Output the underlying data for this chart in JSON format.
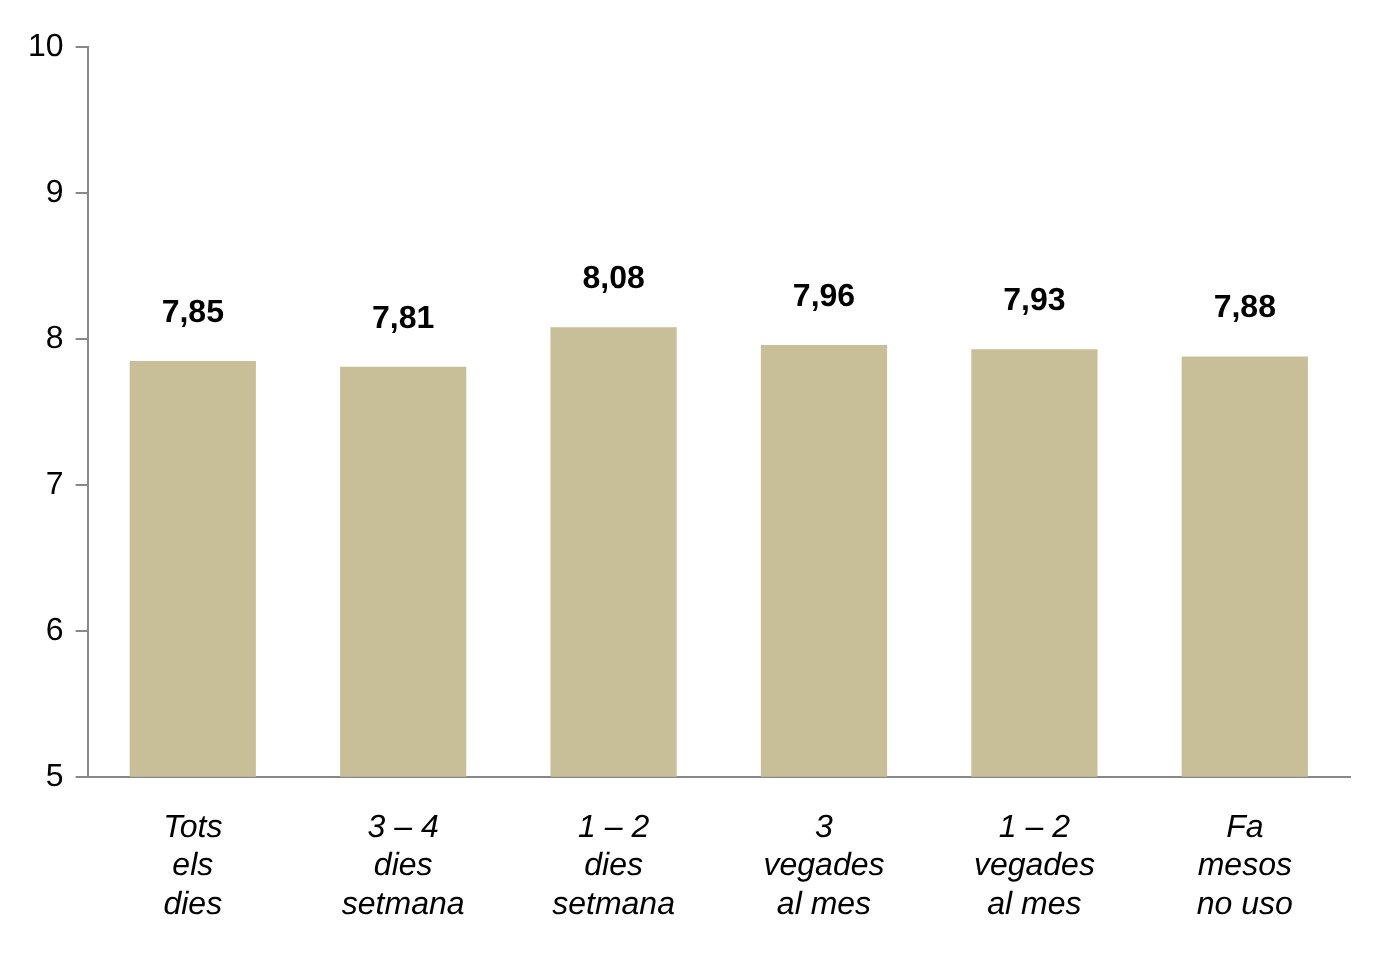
{
  "chart_data": {
    "type": "bar",
    "categories": [
      "Tots\nels\ndies",
      "3 – 4\ndies\nsetmana",
      "1 – 2\ndies\nsetmana",
      "3\nvegades\nal mes",
      "1 – 2\nvegades\nal mes",
      "Fa\nmesos\nno uso"
    ],
    "values": [
      7.85,
      7.81,
      8.08,
      7.96,
      7.93,
      7.88
    ],
    "value_labels": [
      "7,85",
      "7,81",
      "8,08",
      "7,96",
      "7,93",
      "7,88"
    ],
    "color": "#c8bf98",
    "ylim": [
      5,
      10
    ],
    "yticks": [
      5,
      6,
      7,
      8,
      9,
      10
    ],
    "grid": false,
    "legend": false
  }
}
